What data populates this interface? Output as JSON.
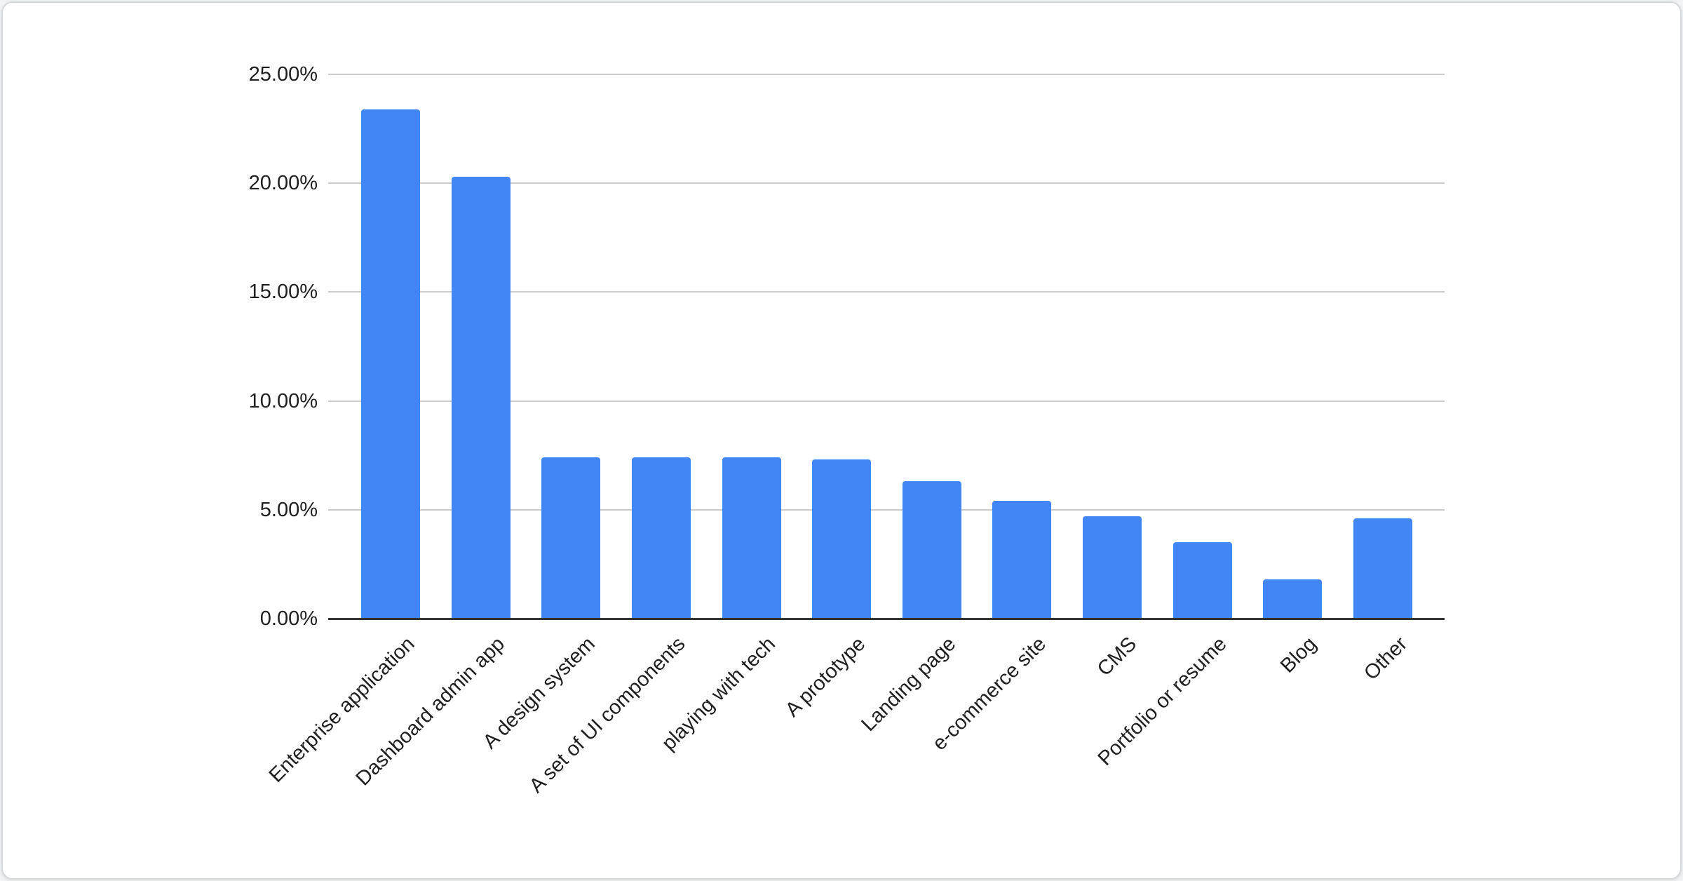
{
  "chart_data": {
    "type": "bar",
    "title": "",
    "xlabel": "",
    "ylabel": "",
    "unit": "%",
    "categories": [
      "Enterprise application",
      "Dashboard admin app",
      "A design system",
      "A set of UI components",
      "playing with tech",
      "A prototype",
      "Landing page",
      "e-commerce site",
      "CMS",
      "Portfolio or resume",
      "Blog",
      "Other"
    ],
    "values": [
      23.4,
      20.3,
      7.4,
      7.4,
      7.4,
      7.3,
      6.3,
      5.4,
      4.7,
      3.5,
      1.8,
      4.6
    ],
    "ylim": [
      0,
      25
    ],
    "y_tick_values": [
      0,
      5,
      10,
      15,
      20,
      25
    ],
    "y_tick_labels": [
      "0.00%",
      "5.00%",
      "10.00%",
      "15.00%",
      "20.00%",
      "25.00%"
    ],
    "grid": "horizontal",
    "legend": "none",
    "colors": {
      "bar": "#4285f4",
      "gridline": "#cccccc",
      "baseline": "#333333",
      "label": "#1f1f1f",
      "card_background": "#ffffff",
      "card_border": "#d6dadd"
    }
  }
}
